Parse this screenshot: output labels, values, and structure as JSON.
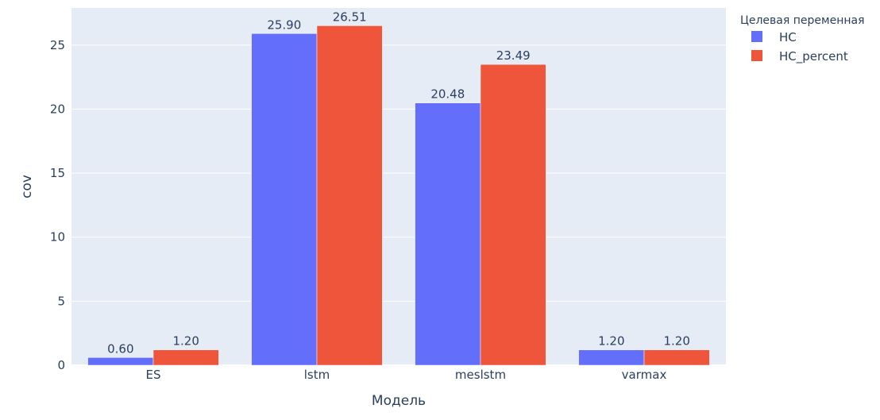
{
  "chart_data": {
    "type": "bar",
    "categories": [
      "ES",
      "lstm",
      "meslstm",
      "varmax"
    ],
    "series": [
      {
        "name": "HC",
        "values": [
          0.6,
          25.9,
          20.48,
          1.2
        ],
        "color": "#636efa"
      },
      {
        "name": "HC_percent",
        "values": [
          1.2,
          26.51,
          23.49,
          1.2
        ],
        "color": "#ef553b"
      }
    ],
    "xlabel": "Модель",
    "ylabel": "cov",
    "ylim": [
      0,
      27.9
    ],
    "yticks": [
      0,
      5,
      10,
      15,
      20,
      25
    ],
    "legend_title": "Целевая переменная",
    "legend_position": "top-right",
    "grid": true,
    "plot_background": "#e5ecf6"
  }
}
